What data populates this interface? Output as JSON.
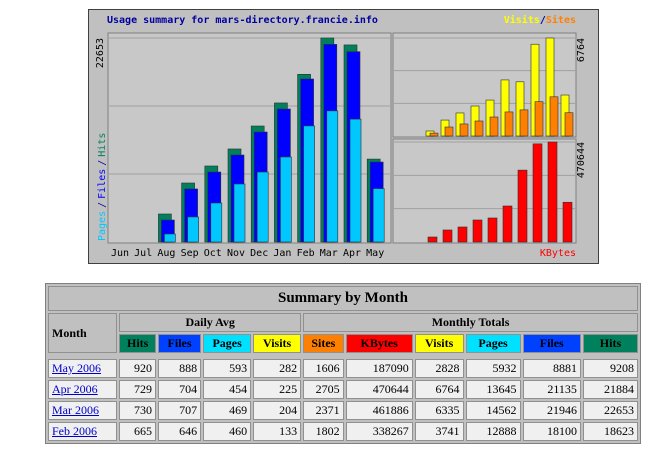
{
  "graph": {
    "title": "Usage summary for mars-directory.francie.info",
    "separator": "/",
    "categories": [
      "Jun",
      "Jul",
      "Aug",
      "Sep",
      "Oct",
      "Nov",
      "Dec",
      "Jan",
      "Feb",
      "Mar",
      "Apr",
      "May"
    ],
    "panels": [
      {
        "ylim": [
          0,
          22653
        ],
        "yticks": [
          22653
        ],
        "series": [
          {
            "name": "Hits",
            "color": "#00805c",
            "values": [
              0,
              0,
              3110,
              6550,
              8440,
              10330,
              12880,
              15440,
              18623,
              22653,
              21884,
              9208
            ]
          },
          {
            "name": "Files",
            "color": "#0000ff",
            "values": [
              0,
              0,
              2440,
              5890,
              7770,
              9660,
              12215,
              14770,
              18100,
              21946,
              21135,
              8881
            ]
          },
          {
            "name": "Pages",
            "color": "#00c8ff",
            "values": [
              0,
              0,
              890,
              2780,
              4330,
              6440,
              7770,
              9440,
              12888,
              14562,
              13645,
              5932
            ]
          }
        ]
      },
      {
        "ylim": [
          0,
          6764
        ],
        "yticks": [
          6764
        ],
        "series": [
          {
            "name": "Visits",
            "color": "#ffff00",
            "values": [
              0,
              0,
              345,
              1100,
              1590,
              2070,
              2480,
              3870,
              3741,
              6335,
              6764,
              2828
            ]
          },
          {
            "name": "Sites",
            "color": "#ff8000",
            "values": [
              0,
              0,
              200,
              620,
              830,
              1035,
              1310,
              1660,
              1802,
              2371,
              2705,
              1606
            ]
          }
        ]
      },
      {
        "ylim": [
          0,
          470644
        ],
        "yticks": [
          470644
        ],
        "series": [
          {
            "name": "KBytes",
            "color": "#ff0000",
            "values": [
              0,
              0,
              23500,
              56500,
              70600,
              103500,
              113000,
              169400,
              338267,
              461886,
              470644,
              187090
            ]
          }
        ]
      }
    ]
  },
  "table": {
    "title": "Summary by Month",
    "month_header": "Month",
    "group_headers": [
      "Daily Avg",
      "Monthly Totals"
    ],
    "columns": [
      "Hits",
      "Files",
      "Pages",
      "Visits",
      "Sites",
      "KBytes",
      "Visits",
      "Pages",
      "Files",
      "Hits"
    ],
    "column_colors": [
      "#00805c",
      "#0040ff",
      "#00e0ff",
      "#ffff00",
      "#ff8000",
      "#ff0000",
      "#ffff00",
      "#00e0ff",
      "#0040ff",
      "#00805c"
    ],
    "rows": [
      [
        "May 2006",
        920,
        888,
        593,
        282,
        1606,
        187090,
        2828,
        5932,
        8881,
        9208
      ],
      [
        "Apr 2006",
        729,
        704,
        454,
        225,
        2705,
        470644,
        6764,
        13645,
        21135,
        21884
      ],
      [
        "Mar 2006",
        730,
        707,
        469,
        204,
        2371,
        461886,
        6335,
        14562,
        21946,
        22653
      ],
      [
        "Feb 2006",
        665,
        646,
        460,
        133,
        1802,
        338267,
        3741,
        12888,
        18100,
        18623
      ]
    ]
  }
}
